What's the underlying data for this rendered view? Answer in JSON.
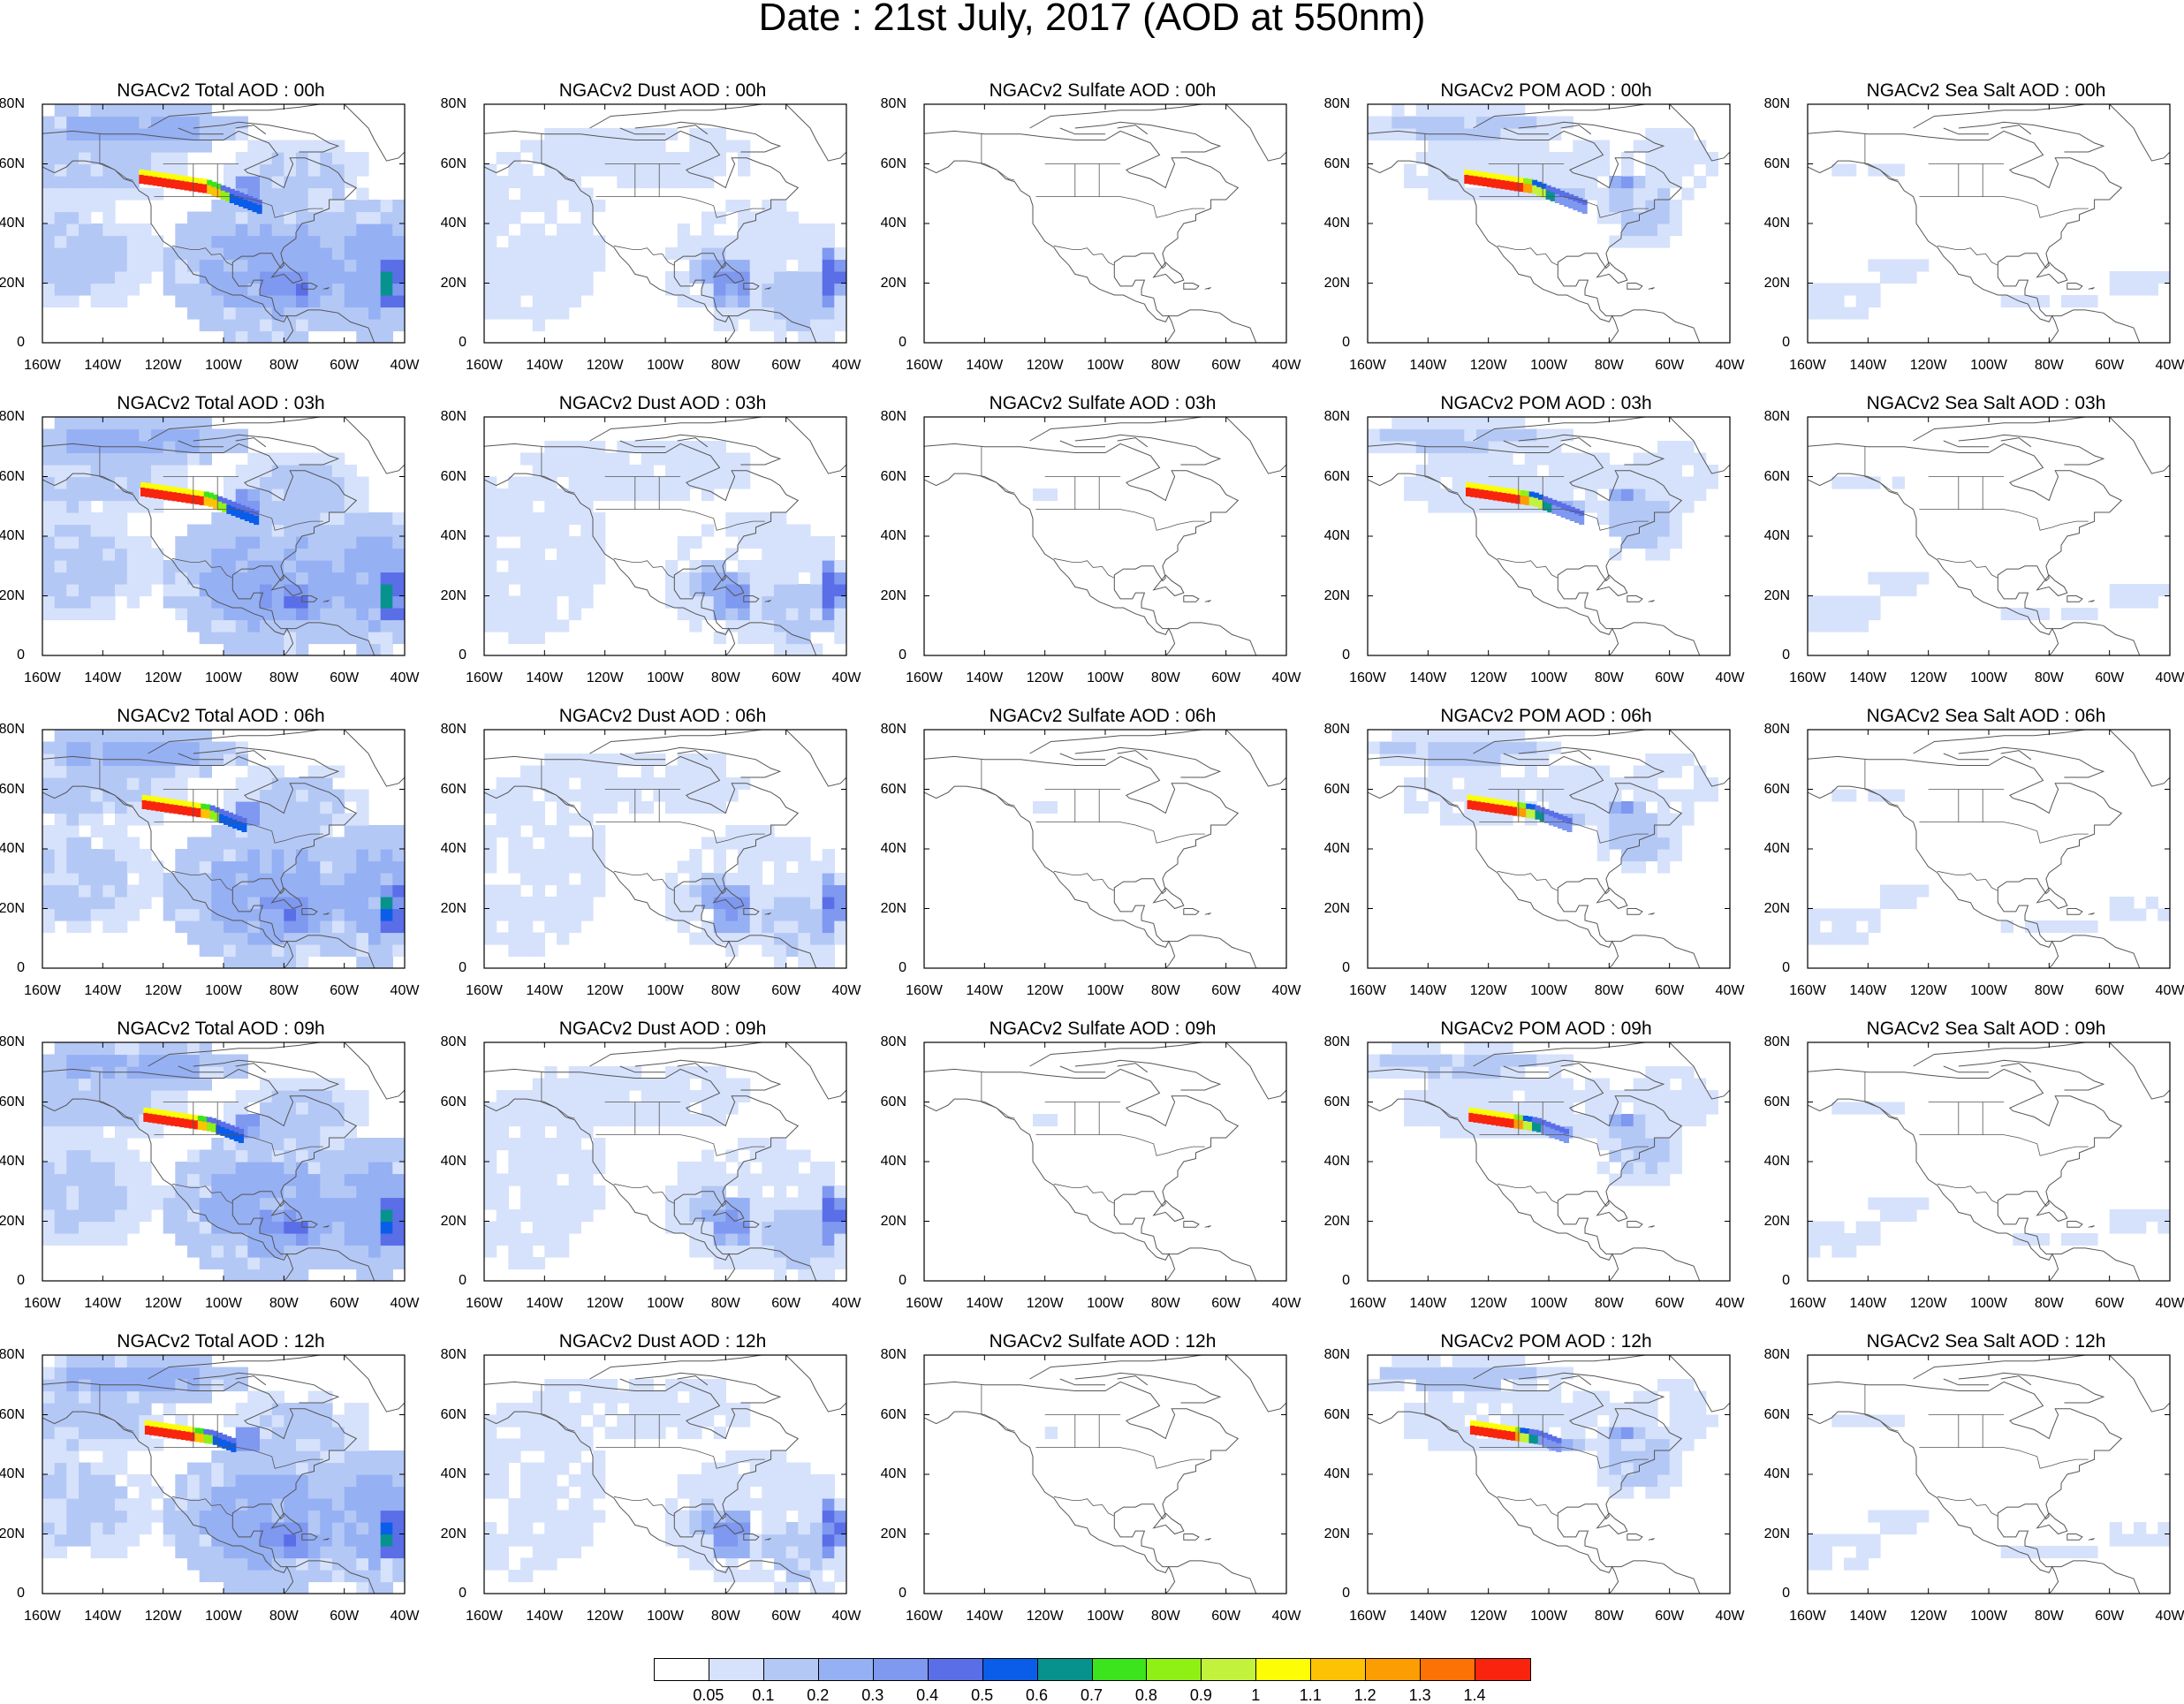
{
  "title": "Date : 21st July, 2017 (AOD at 550nm)",
  "lat_labels": [
    "80N",
    "60N",
    "40N",
    "20N",
    "0"
  ],
  "lon_labels": [
    "160W",
    "140W",
    "120W",
    "100W",
    "80W",
    "60W",
    "40W"
  ],
  "columns": [
    {
      "key": "total",
      "titles": [
        "NGACv2 Total AOD : 00h",
        "NGACv2 Total AOD : 03h",
        "NGACv2 Total AOD : 06h",
        "NGACv2 Total AOD : 09h",
        "NGACv2 Total AOD  : 12h"
      ]
    },
    {
      "key": "dust",
      "titles": [
        "NGACv2 Dust AOD : 00h",
        "NGACv2 Dust AOD : 03h",
        "NGACv2 Dust AOD : 06h",
        "NGACv2 Dust AOD : 09h",
        "NGACv2 Dust AOD : 12h"
      ]
    },
    {
      "key": "sulfate",
      "titles": [
        "NGACv2 Sulfate AOD : 00h",
        "NGACv2 Sulfate AOD : 03h",
        "NGACv2 Sulfate AOD : 06h",
        "NGACv2 Sulfate AOD : 09h",
        "NGACv2 Sulfate AOD : 12h"
      ]
    },
    {
      "key": "pom",
      "titles": [
        "NGACv2 POM AOD : 00h",
        "NGACv2 POM AOD : 03h",
        "NGACv2 POM AOD : 06h",
        "NGACv2 POM AOD : 09h",
        "NGACv2 POM  AOD : 12h"
      ]
    },
    {
      "key": "seasalt",
      "titles": [
        "NGACv2 Sea Salt AOD : 00h",
        "NGACv2 Sea Salt AOD : 03h",
        "NGACv2 Sea Salt AOD : 06h",
        "NGACv2 Sea Salt  AOD : 09h",
        "NGACv2 Sea Salt  AOD : 12h"
      ]
    }
  ],
  "colorbar": {
    "labels": [
      "0.05",
      "0.1",
      "0.2",
      "0.3",
      "0.4",
      "0.5",
      "0.6",
      "0.7",
      "0.8",
      "0.9",
      "1",
      "1.1",
      "1.2",
      "1.3",
      "1.4"
    ],
    "colors": [
      "#ffffff",
      "#d6e2fb",
      "#b4c8f6",
      "#96b0f4",
      "#7f98f0",
      "#5a6ee8",
      "#0a5de8",
      "#07928e",
      "#3be41c",
      "#8ff016",
      "#c2f23c",
      "#fdfd06",
      "#fdc204",
      "#fd9d04",
      "#fd7205",
      "#f8240e"
    ]
  },
  "map_colors": {
    "coast": "#555555",
    "frame": "#000000"
  }
}
